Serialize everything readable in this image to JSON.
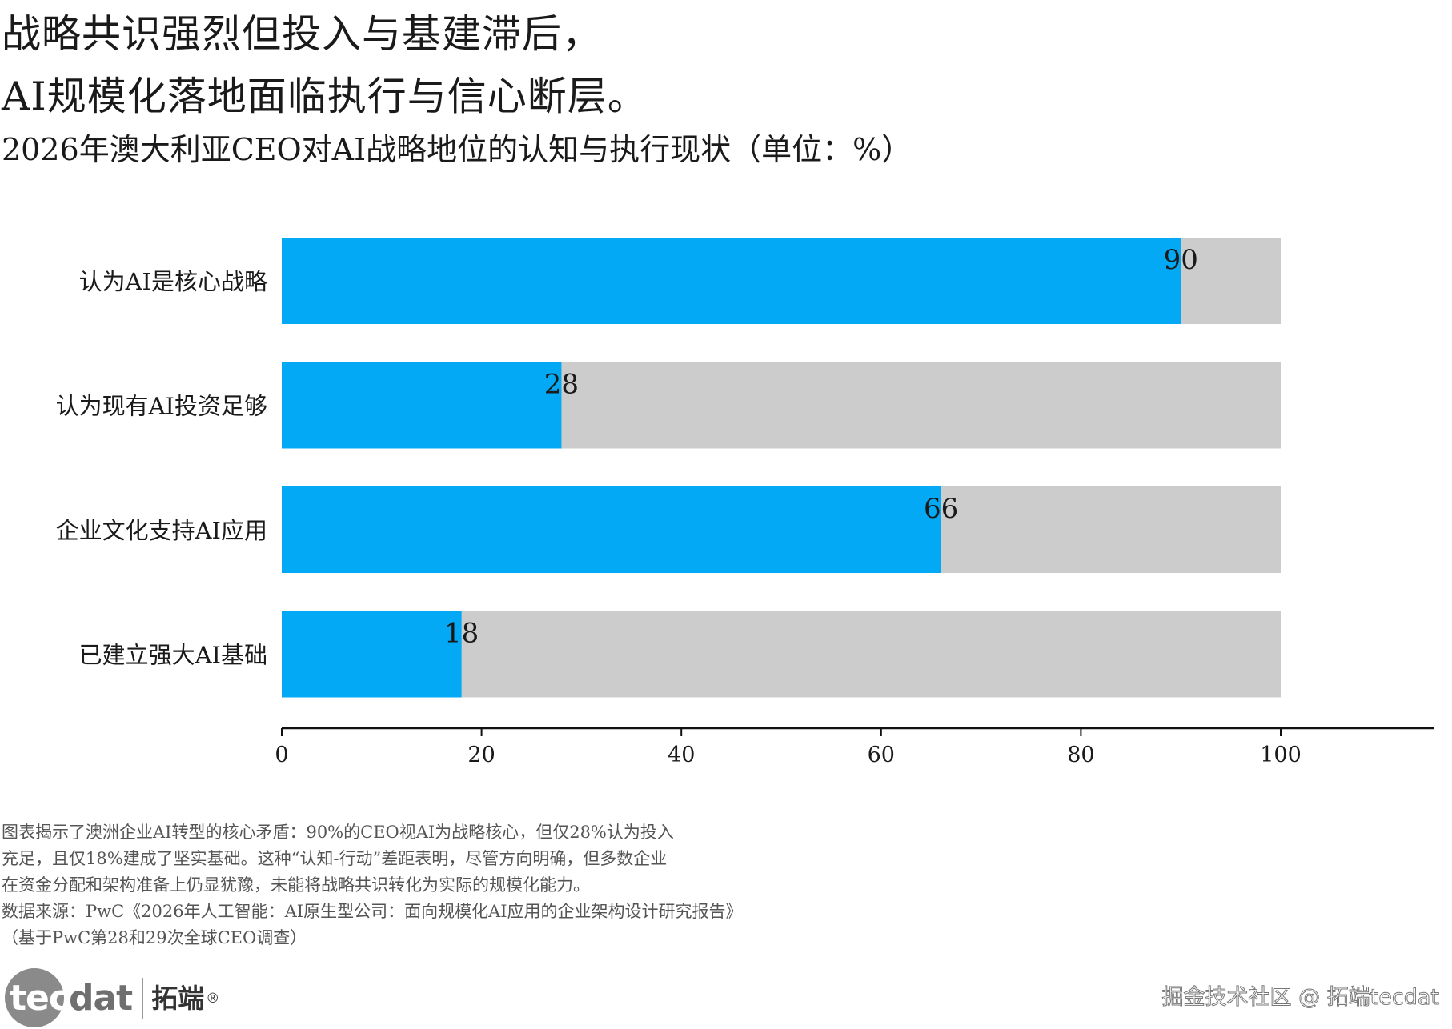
{
  "header": {
    "title_line1": "战略共识强烈但投入与基建滞后，",
    "title_line2": "AI规模化落地面临执行与信心断层。",
    "subtitle": "2026年澳大利亚CEO对AI战略地位的认知与执行现状（单位：%）"
  },
  "chart_data": {
    "type": "bar",
    "orientation": "horizontal",
    "categories": [
      "认为AI是核心战略",
      "认为现有AI投资足够",
      "企业文化支持AI应用",
      "已建立强大AI基础"
    ],
    "values": [
      90,
      28,
      66,
      18
    ],
    "background_total": 100,
    "data_labels": [
      "90",
      "28",
      "66",
      "18"
    ],
    "xlim": [
      0,
      115
    ],
    "xticks": [
      0,
      20,
      40,
      60,
      80,
      100
    ],
    "xtick_labels": [
      "0",
      "20",
      "40",
      "60",
      "80",
      "100"
    ],
    "grid": false,
    "legend": "none",
    "colors": {
      "value_bar": "#03a9f4",
      "remainder_bar": "#cccccc",
      "axis": "#111111",
      "text": "#1a1a1a"
    }
  },
  "notes": {
    "lines": [
      "图表揭示了澳洲企业AI转型的核心矛盾：90%的CEO视AI为战略核心，但仅28%认为投入",
      "充足，且仅18%建成了坚实基础。这种“认知-行动”差距表明，尽管方向明确，但多数企业",
      "在资金分配和架构准备上仍显犹豫，未能将战略共识转化为实际的规模化能力。",
      "数据来源：PwC《2026年人工智能：AI原生型公司：面向规模化AI应用的企业架构设计研究报告》",
      "（基于PwC第28和29次全球CEO调查）"
    ]
  },
  "footer": {
    "logo_tec": "tec",
    "logo_dat": "dat",
    "logo_cn": "拓端",
    "logo_reg": "®",
    "watermark": "掘金技术社区 @ 拓端tecdat"
  }
}
